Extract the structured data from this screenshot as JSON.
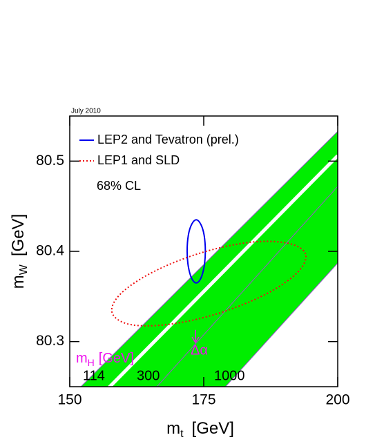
{
  "chart_data": {
    "type": "contour",
    "date_note": "July 2010",
    "x_label": {
      "symbol": "m",
      "sub": "t",
      "unit": "[GeV]"
    },
    "y_label": {
      "symbol": "m",
      "sub": "W",
      "unit": "[GeV]"
    },
    "xlim": [
      150,
      200
    ],
    "xticks": [
      150,
      175,
      200
    ],
    "ylim": [
      80.25,
      80.55
    ],
    "yticks": [
      80.3,
      80.4,
      80.5
    ],
    "band": {
      "color": "#00ee00",
      "x": [
        151.9,
        200,
        200,
        178.9
      ],
      "y": [
        80.249,
        80.533,
        80.387,
        80.249
      ]
    },
    "lines": [
      {
        "color": "#ffffff",
        "width": 5,
        "x": [
          157.3,
          200
        ],
        "y": [
          80.249,
          80.506
        ]
      },
      {
        "color": "#9955cc",
        "width": 1,
        "x": [
          166.1,
          200
        ],
        "y": [
          80.249,
          80.472
        ]
      },
      {
        "color": "#9955cc",
        "width": 1,
        "x": [
          151.9,
          200
        ],
        "y": [
          80.249,
          80.533
        ]
      },
      {
        "color": "#9955cc",
        "width": 1,
        "x": [
          178.9,
          200
        ],
        "y": [
          80.249,
          80.387
        ]
      }
    ],
    "series": [
      {
        "name": "LEP2 and Tevatron (prel.)",
        "color": "#0000ee",
        "style": "solid",
        "x": [
          175.3,
          175.07,
          174.45,
          173.6,
          172.75,
          172.13,
          171.9,
          172.13,
          172.75,
          173.6,
          174.45,
          175.07
        ],
        "y": [
          80.4,
          80.418,
          80.43,
          80.435,
          80.43,
          80.418,
          80.4,
          80.383,
          80.37,
          80.365,
          80.37,
          80.383
        ]
      },
      {
        "name": "LEP1 and SLD",
        "color": "#ee1111",
        "style": "dotted",
        "x": [
          194.0,
          190.7,
          183.6,
          174.3,
          165.5,
          159.5,
          157.9,
          161.2,
          168.4,
          177.6,
          186.4,
          192.4
        ],
        "y": [
          80.397,
          80.409,
          80.41,
          80.398,
          80.377,
          80.353,
          80.332,
          80.319,
          80.319,
          80.331,
          80.352,
          80.376
        ]
      }
    ],
    "confidence_note": "68% CL",
    "higgs_color": "#ee11ee",
    "higgs_label": {
      "symbol": "m",
      "sub": "H",
      "unit": "[GeV]"
    },
    "higgs_values": [
      114,
      300,
      1000
    ],
    "alpha_note": "Δα"
  }
}
